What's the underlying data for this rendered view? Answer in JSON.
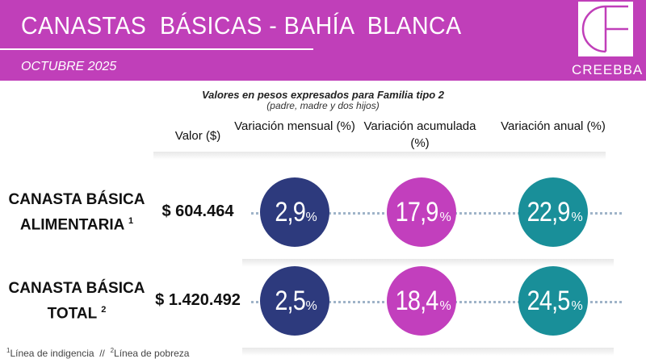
{
  "header": {
    "title": "CANASTAS  BÁSICAS - BAHÍA  BLANCA",
    "subtitle": "OCTUBRE 2025",
    "logo": "CREEBBA"
  },
  "intro": {
    "line1": "Valores en pesos expresados para Familia tipo 2",
    "line2": "(padre, madre y dos hijos)"
  },
  "columns": [
    "Valor ($)",
    "Variación mensual (%)",
    "Variación acumulada (%)",
    "Variación anual (%)"
  ],
  "rows": [
    {
      "name_line1": "CANASTA BÁSICA",
      "name_line2": "ALIMENTARIA",
      "note": "1",
      "value": "$ 604.464",
      "variations": [
        {
          "number": "2,9",
          "unit": "%"
        },
        {
          "number": "17,9",
          "unit": "%"
        },
        {
          "number": "22,9",
          "unit": "%"
        }
      ]
    },
    {
      "name_line1": "CANASTA BÁSICA",
      "name_line2": "TOTAL",
      "note": "2",
      "value": "$ 1.420.492",
      "variations": [
        {
          "number": "2,5",
          "unit": "%"
        },
        {
          "number": "18,4",
          "unit": "%"
        },
        {
          "number": "24,5",
          "unit": "%"
        }
      ]
    }
  ],
  "footnotes": [
    {
      "mark": "1",
      "text": "Línea de indigencia"
    },
    {
      "mark": "2",
      "text": "Línea de pobreza"
    }
  ],
  "separator": "//"
}
